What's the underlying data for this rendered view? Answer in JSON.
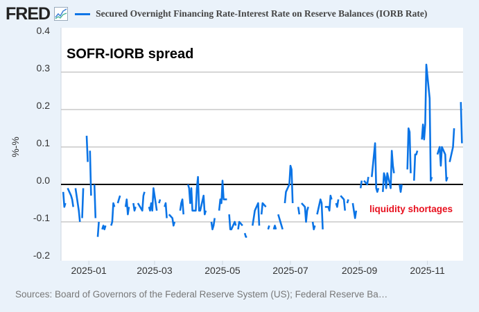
{
  "logo": "FRED",
  "legend_label": "Secured Overnight Financing Rate-Interest Rate on Reserve Balances (IORB Rate)",
  "sources": "Sources: Board of Governors of the Federal Reserve System (US); Federal Reserve Ba…",
  "colors": {
    "series": "#0b74e6",
    "annotation": "#e8101e",
    "grid": "#c8c8c8",
    "plot_bg": "#ffffff",
    "page_bg": "#eaf2fa"
  },
  "chart_data": {
    "type": "line",
    "title": "",
    "xlabel": "",
    "ylabel": "%-%",
    "xlim": [
      "2024-12-07",
      "2025-12-03"
    ],
    "ylim": [
      -0.2,
      0.4
    ],
    "yticks": [
      "0.4",
      "0.3",
      "0.2",
      "0.1",
      "0.0",
      "-0.1",
      "-0.2"
    ],
    "xticks": [
      {
        "date": "2025-01-01",
        "label": "2025-01"
      },
      {
        "date": "2025-03-01",
        "label": "2025-03"
      },
      {
        "date": "2025-05-01",
        "label": "2025-05"
      },
      {
        "date": "2025-07-01",
        "label": "2025-07"
      },
      {
        "date": "2025-09-01",
        "label": "2025-09"
      },
      {
        "date": "2025-11-01",
        "label": "2025-11"
      }
    ],
    "grid": true,
    "zero_line": true,
    "annotations": [
      {
        "text": "SOFR-IORB spread",
        "date": "2024-12-12",
        "y": 0.35
      },
      {
        "text": "liquidity shortages",
        "date": "2025-09-10",
        "y": -0.065
      }
    ],
    "series": [
      {
        "points": [
          [
            "2024-12-09",
            -0.02
          ],
          [
            "2024-12-10",
            -0.06
          ],
          [
            "2024-12-11",
            -0.05
          ],
          [
            "2024-12-12",
            null
          ],
          [
            "2024-12-13",
            -0.01
          ],
          [
            "2024-12-16",
            -0.03
          ],
          [
            "2024-12-17",
            -0.04
          ],
          [
            "2024-12-18",
            -0.06
          ],
          [
            "2024-12-19",
            null
          ],
          [
            "2024-12-20",
            -0.01
          ],
          [
            "2024-12-23",
            -0.07
          ],
          [
            "2024-12-24",
            -0.1
          ],
          [
            "2024-12-25",
            null
          ],
          [
            "2024-12-26",
            -0.09
          ],
          [
            "2024-12-27",
            -0.01
          ],
          [
            "2024-12-28",
            null
          ],
          [
            "2024-12-30",
            0.13
          ],
          [
            "2024-12-31",
            0.06
          ],
          [
            "2025-01-01",
            null
          ],
          [
            "2025-01-02",
            0.09
          ],
          [
            "2025-01-03",
            -0.03
          ],
          [
            "2025-01-04",
            null
          ],
          [
            "2025-01-06",
            0.0
          ],
          [
            "2025-01-07",
            -0.09
          ],
          [
            "2025-01-08",
            null
          ],
          [
            "2025-01-09",
            -0.14
          ],
          [
            "2025-01-10",
            -0.1
          ],
          [
            "2025-01-11",
            null
          ],
          [
            "2025-01-13",
            -0.12
          ],
          [
            "2025-01-14",
            -0.11
          ],
          [
            "2025-01-15",
            -0.12
          ],
          [
            "2025-01-16",
            -0.11
          ],
          [
            "2025-01-17",
            null
          ],
          [
            "2025-01-21",
            -0.11
          ],
          [
            "2025-01-22",
            -0.1
          ],
          [
            "2025-01-23",
            -0.05
          ],
          [
            "2025-01-24",
            -0.06
          ],
          [
            "2025-01-25",
            null
          ],
          [
            "2025-01-27",
            -0.05
          ],
          [
            "2025-01-28",
            -0.04
          ],
          [
            "2025-01-29",
            -0.03
          ],
          [
            "2025-01-30",
            null
          ],
          [
            "2025-02-03",
            -0.06
          ],
          [
            "2025-02-04",
            -0.04
          ],
          [
            "2025-02-05",
            -0.08
          ],
          [
            "2025-02-06",
            -0.06
          ],
          [
            "2025-02-07",
            null
          ],
          [
            "2025-02-10",
            -0.05
          ],
          [
            "2025-02-11",
            -0.07
          ],
          [
            "2025-02-12",
            -0.06
          ],
          [
            "2025-02-13",
            null
          ],
          [
            "2025-02-14",
            -0.05
          ],
          [
            "2025-02-18",
            -0.07
          ],
          [
            "2025-02-19",
            -0.03
          ],
          [
            "2025-02-20",
            -0.02
          ],
          [
            "2025-02-21",
            null
          ],
          [
            "2025-02-24",
            -0.06
          ],
          [
            "2025-02-25",
            -0.07
          ],
          [
            "2025-02-26",
            -0.05
          ],
          [
            "2025-02-27",
            -0.07
          ],
          [
            "2025-02-28",
            -0.01
          ],
          [
            "2025-03-03",
            -0.07
          ],
          [
            "2025-03-04",
            null
          ],
          [
            "2025-03-05",
            -0.05
          ],
          [
            "2025-03-06",
            -0.04
          ],
          [
            "2025-03-07",
            null
          ],
          [
            "2025-03-10",
            -0.06
          ],
          [
            "2025-03-11",
            -0.05
          ],
          [
            "2025-03-12",
            -0.09
          ],
          [
            "2025-03-13",
            null
          ],
          [
            "2025-03-14",
            -0.08
          ],
          [
            "2025-03-17",
            -0.09
          ],
          [
            "2025-03-18",
            -0.11
          ],
          [
            "2025-03-19",
            -0.1
          ],
          [
            "2025-03-20",
            null
          ],
          [
            "2025-03-24",
            -0.07
          ],
          [
            "2025-03-25",
            -0.05
          ],
          [
            "2025-03-26",
            -0.04
          ],
          [
            "2025-03-27",
            -0.08
          ],
          [
            "2025-03-28",
            null
          ],
          [
            "2025-03-31",
            0.0
          ],
          [
            "2025-04-01",
            -0.01
          ],
          [
            "2025-04-02",
            -0.05
          ],
          [
            "2025-04-03",
            -0.01
          ],
          [
            "2025-04-04",
            -0.07
          ],
          [
            "2025-04-07",
            -0.07
          ],
          [
            "2025-04-08",
            -0.01
          ],
          [
            "2025-04-09",
            0.02
          ],
          [
            "2025-04-10",
            -0.07
          ],
          [
            "2025-04-11",
            -0.07
          ],
          [
            "2025-04-14",
            -0.03
          ],
          [
            "2025-04-15",
            -0.08
          ],
          [
            "2025-04-16",
            -0.07
          ],
          [
            "2025-04-17",
            null
          ],
          [
            "2025-04-21",
            -0.1
          ],
          [
            "2025-04-22",
            -0.12
          ],
          [
            "2025-04-23",
            -0.11
          ],
          [
            "2025-04-24",
            -0.09
          ],
          [
            "2025-04-25",
            null
          ],
          [
            "2025-04-28",
            -0.07
          ],
          [
            "2025-04-29",
            -0.04
          ],
          [
            "2025-04-30",
            -0.05
          ],
          [
            "2025-05-01",
            0.01
          ],
          [
            "2025-05-02",
            -0.04
          ],
          [
            "2025-05-05",
            -0.04
          ],
          [
            "2025-05-06",
            null
          ],
          [
            "2025-05-07",
            -0.08
          ],
          [
            "2025-05-08",
            -0.12
          ],
          [
            "2025-05-09",
            -0.12
          ],
          [
            "2025-05-12",
            -0.1
          ],
          [
            "2025-05-13",
            -0.11
          ],
          [
            "2025-05-14",
            null
          ],
          [
            "2025-05-15",
            -0.12
          ],
          [
            "2025-05-16",
            -0.1
          ],
          [
            "2025-05-19",
            -0.11
          ],
          [
            "2025-05-20",
            null
          ],
          [
            "2025-05-21",
            -0.13
          ],
          [
            "2025-05-22",
            -0.14
          ],
          [
            "2025-05-23",
            -0.14
          ],
          [
            "2025-05-24",
            null
          ],
          [
            "2025-05-28",
            -0.11
          ],
          [
            "2025-05-29",
            -0.09
          ],
          [
            "2025-05-30",
            -0.07
          ],
          [
            "2025-06-02",
            -0.05
          ],
          [
            "2025-06-03",
            -0.11
          ],
          [
            "2025-06-04",
            null
          ],
          [
            "2025-06-05",
            -0.08
          ],
          [
            "2025-06-06",
            -0.05
          ],
          [
            "2025-06-09",
            -0.06
          ],
          [
            "2025-06-10",
            null
          ],
          [
            "2025-06-11",
            -0.12
          ],
          [
            "2025-06-12",
            -0.11
          ],
          [
            "2025-06-13",
            null
          ],
          [
            "2025-06-16",
            -0.12
          ],
          [
            "2025-06-17",
            -0.11
          ],
          [
            "2025-06-18",
            -0.12
          ],
          [
            "2025-06-19",
            null
          ],
          [
            "2025-06-20",
            -0.08
          ],
          [
            "2025-06-23",
            -0.11
          ],
          [
            "2025-06-24",
            -0.12
          ],
          [
            "2025-06-25",
            null
          ],
          [
            "2025-06-26",
            -0.05
          ],
          [
            "2025-06-27",
            -0.02
          ],
          [
            "2025-06-30",
            0.0
          ],
          [
            "2025-07-01",
            0.05
          ],
          [
            "2025-07-02",
            0.04
          ],
          [
            "2025-07-03",
            -0.05
          ],
          [
            "2025-07-04",
            null
          ],
          [
            "2025-07-08",
            -0.06
          ],
          [
            "2025-07-09",
            -0.08
          ],
          [
            "2025-07-10",
            null
          ],
          [
            "2025-07-11",
            -0.05
          ],
          [
            "2025-07-14",
            -0.06
          ],
          [
            "2025-07-15",
            -0.1
          ],
          [
            "2025-07-16",
            -0.07
          ],
          [
            "2025-07-17",
            -0.06
          ],
          [
            "2025-07-18",
            null
          ],
          [
            "2025-07-21",
            -0.1
          ],
          [
            "2025-07-22",
            -0.12
          ],
          [
            "2025-07-23",
            -0.11
          ],
          [
            "2025-07-24",
            null
          ],
          [
            "2025-07-25",
            -0.08
          ],
          [
            "2025-07-28",
            -0.04
          ],
          [
            "2025-07-29",
            -0.05
          ],
          [
            "2025-07-30",
            -0.12
          ],
          [
            "2025-07-31",
            null
          ],
          [
            "2025-08-01",
            -0.06
          ],
          [
            "2025-08-04",
            -0.06
          ],
          [
            "2025-08-05",
            -0.07
          ],
          [
            "2025-08-06",
            -0.03
          ],
          [
            "2025-08-07",
            -0.04
          ],
          [
            "2025-08-08",
            null
          ],
          [
            "2025-08-11",
            -0.05
          ],
          [
            "2025-08-12",
            -0.06
          ],
          [
            "2025-08-13",
            -0.04
          ],
          [
            "2025-08-14",
            null
          ],
          [
            "2025-08-15",
            -0.03
          ],
          [
            "2025-08-18",
            -0.04
          ],
          [
            "2025-08-19",
            -0.07
          ],
          [
            "2025-08-20",
            null
          ],
          [
            "2025-08-21",
            -0.05
          ],
          [
            "2025-08-22",
            -0.04
          ],
          [
            "2025-08-23",
            null
          ],
          [
            "2025-08-26",
            -0.05
          ],
          [
            "2025-08-27",
            -0.07
          ],
          [
            "2025-08-28",
            -0.09
          ],
          [
            "2025-08-29",
            -0.07
          ],
          [
            "2025-08-30",
            null
          ],
          [
            "2025-09-02",
            -0.01
          ],
          [
            "2025-09-03",
            0.01
          ],
          [
            "2025-09-04",
            null
          ],
          [
            "2025-09-05",
            0.01
          ],
          [
            "2025-09-08",
            0.0
          ],
          [
            "2025-09-09",
            0.02
          ],
          [
            "2025-09-10",
            null
          ],
          [
            "2025-09-12",
            0.02
          ],
          [
            "2025-09-15",
            0.11
          ],
          [
            "2025-09-16",
            -0.01
          ],
          [
            "2025-09-17",
            -0.02
          ],
          [
            "2025-09-18",
            -0.01
          ],
          [
            "2025-09-19",
            null
          ],
          [
            "2025-09-22",
            -0.02
          ],
          [
            "2025-09-23",
            0.03
          ],
          [
            "2025-09-24",
            0.02
          ],
          [
            "2025-09-25",
            -0.01
          ],
          [
            "2025-09-26",
            0.03
          ],
          [
            "2025-09-29",
            -0.01
          ],
          [
            "2025-09-30",
            0.09
          ],
          [
            "2025-10-01",
            0.05
          ],
          [
            "2025-10-02",
            0.03
          ],
          [
            "2025-10-03",
            null
          ],
          [
            "2025-10-07",
            0.0
          ],
          [
            "2025-10-08",
            -0.02
          ],
          [
            "2025-10-09",
            0.0
          ],
          [
            "2025-10-10",
            null
          ],
          [
            "2025-10-14",
            0.04
          ],
          [
            "2025-10-15",
            0.15
          ],
          [
            "2025-10-16",
            0.14
          ],
          [
            "2025-10-17",
            0.03
          ],
          [
            "2025-10-18",
            null
          ],
          [
            "2025-10-20",
            0.01
          ],
          [
            "2025-10-21",
            0.08
          ],
          [
            "2025-10-22",
            0.08
          ],
          [
            "2025-10-23",
            0.09
          ],
          [
            "2025-10-24",
            null
          ],
          [
            "2025-10-27",
            0.12
          ],
          [
            "2025-10-28",
            0.16
          ],
          [
            "2025-10-29",
            0.12
          ],
          [
            "2025-10-30",
            0.16
          ],
          [
            "2025-10-31",
            0.32
          ],
          [
            "2025-11-03",
            0.23
          ],
          [
            "2025-11-04",
            0.01
          ],
          [
            "2025-11-05",
            0.02
          ],
          [
            "2025-11-06",
            null
          ],
          [
            "2025-11-10",
            0.08
          ],
          [
            "2025-11-12",
            0.1
          ],
          [
            "2025-11-13",
            0.05
          ],
          [
            "2025-11-14",
            0.1
          ],
          [
            "2025-11-17",
            0.08
          ],
          [
            "2025-11-18",
            0.01
          ],
          [
            "2025-11-19",
            0.02
          ],
          [
            "2025-11-20",
            null
          ],
          [
            "2025-11-21",
            0.06
          ],
          [
            "2025-11-24",
            0.1
          ],
          [
            "2025-11-25",
            0.15
          ],
          [
            "2025-11-26",
            null
          ],
          [
            "2025-12-01",
            0.22
          ],
          [
            "2025-12-02",
            0.11
          ]
        ]
      }
    ]
  }
}
